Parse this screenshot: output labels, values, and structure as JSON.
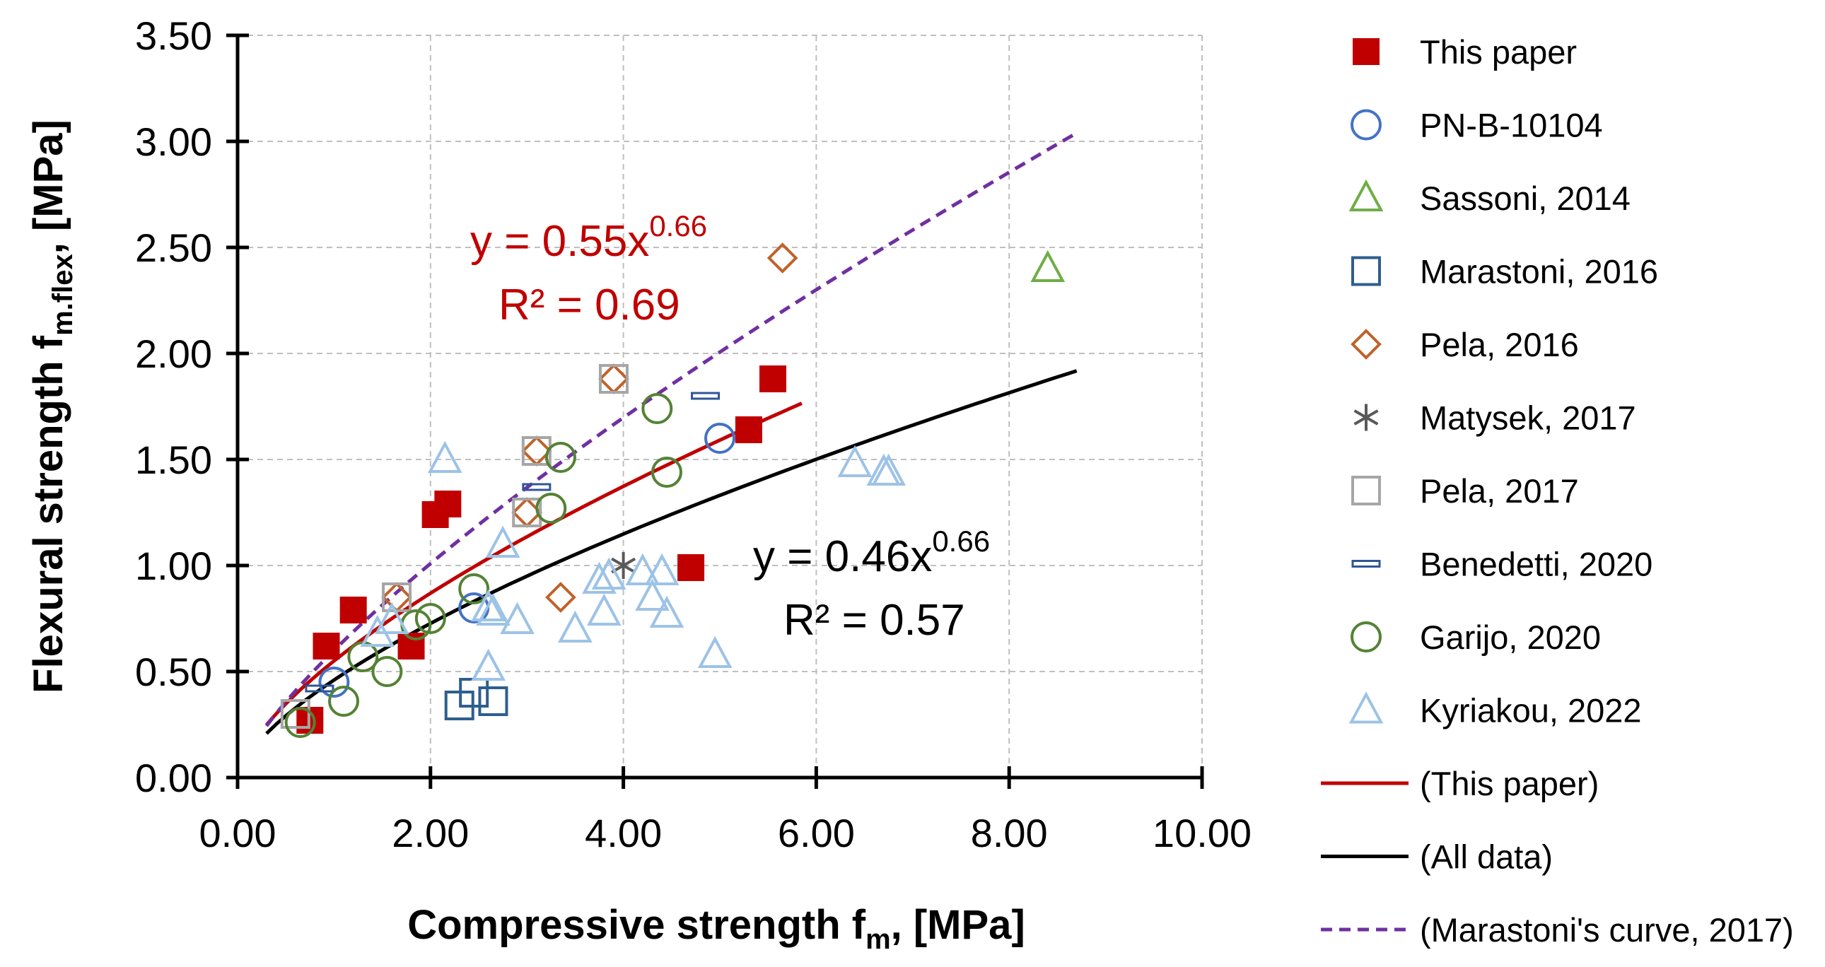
{
  "chart_data": {
    "type": "scatter",
    "xlabel": "Compressive strength f",
    "xlabel_sub": "m",
    "xlabel_unit": ", [MPa]",
    "ylabel": "Flexural strength f",
    "ylabel_sub": "m.flex",
    "ylabel_unit": ", [MPa]",
    "xlim": [
      0,
      10
    ],
    "ylim": [
      0,
      3.5
    ],
    "grid": true,
    "legend_position": "right",
    "x_ticks": [
      0,
      2,
      4,
      6,
      8,
      10
    ],
    "y_ticks": [
      0,
      0.5,
      1.0,
      1.5,
      2.0,
      2.5,
      3.0,
      3.5
    ],
    "x_tick_labels": [
      "0.00",
      "2.00",
      "4.00",
      "6.00",
      "8.00",
      "10.00"
    ],
    "y_tick_labels": [
      "0.00",
      "0.50",
      "1.00",
      "1.50",
      "2.00",
      "2.50",
      "3.00",
      "3.50"
    ],
    "series": [
      {
        "name": "This paper",
        "marker": "square-filled",
        "color": "#C00000",
        "points": [
          [
            0.75,
            0.27
          ],
          [
            0.92,
            0.62
          ],
          [
            1.2,
            0.79
          ],
          [
            1.8,
            0.62
          ],
          [
            2.05,
            1.24
          ],
          [
            2.18,
            1.29
          ],
          [
            4.7,
            0.99
          ],
          [
            5.3,
            1.64
          ],
          [
            5.55,
            1.88
          ]
        ]
      },
      {
        "name": "PN-B-10104",
        "marker": "circle",
        "color": "#4472C4",
        "points": [
          [
            1.0,
            0.45
          ],
          [
            2.45,
            0.8
          ],
          [
            5.0,
            1.6
          ]
        ]
      },
      {
        "name": "Sassoni, 2014",
        "marker": "triangle",
        "color": "#70AD47",
        "points": [
          [
            8.4,
            2.4
          ]
        ]
      },
      {
        "name": "Marastoni, 2016",
        "marker": "square",
        "color": "#2E5E8E",
        "points": [
          [
            2.3,
            0.34
          ],
          [
            2.45,
            0.4
          ],
          [
            2.65,
            0.36
          ]
        ]
      },
      {
        "name": "Pela, 2016",
        "marker": "diamond",
        "color": "#C0622A",
        "points": [
          [
            1.65,
            0.85
          ],
          [
            3.0,
            1.25
          ],
          [
            3.1,
            1.54
          ],
          [
            3.35,
            0.85
          ],
          [
            3.9,
            1.88
          ],
          [
            5.65,
            2.45
          ]
        ]
      },
      {
        "name": "Matysek, 2017",
        "marker": "asterisk",
        "color": "#595959",
        "points": [
          [
            4.0,
            1.0
          ]
        ]
      },
      {
        "name": "Pela, 2017",
        "marker": "square",
        "color": "#A6A6A6",
        "points": [
          [
            0.6,
            0.3
          ],
          [
            1.65,
            0.85
          ],
          [
            3.0,
            1.25
          ],
          [
            3.1,
            1.54
          ],
          [
            3.9,
            1.88
          ]
        ]
      },
      {
        "name": "Benedetti, 2020",
        "marker": "dash",
        "color": "#2F5597",
        "points": [
          [
            0.85,
            0.42
          ],
          [
            3.1,
            1.37
          ],
          [
            4.85,
            1.8
          ]
        ]
      },
      {
        "name": "Garijo, 2020",
        "marker": "circle",
        "color": "#548235",
        "points": [
          [
            0.65,
            0.26
          ],
          [
            1.1,
            0.36
          ],
          [
            1.3,
            0.57
          ],
          [
            1.55,
            0.5
          ],
          [
            1.85,
            0.72
          ],
          [
            2.0,
            0.75
          ],
          [
            2.45,
            0.89
          ],
          [
            3.25,
            1.27
          ],
          [
            3.35,
            1.51
          ],
          [
            4.35,
            1.74
          ],
          [
            4.45,
            1.44
          ]
        ]
      },
      {
        "name": "Kyriakou, 2022",
        "marker": "triangle",
        "color": "#9DC3E6",
        "points": [
          [
            1.45,
            0.68
          ],
          [
            1.6,
            0.74
          ],
          [
            2.15,
            1.5
          ],
          [
            2.6,
            0.8
          ],
          [
            2.6,
            0.52
          ],
          [
            2.65,
            0.78
          ],
          [
            2.75,
            1.1
          ],
          [
            2.9,
            0.74
          ],
          [
            3.5,
            0.7
          ],
          [
            3.75,
            0.93
          ],
          [
            3.8,
            0.78
          ],
          [
            3.85,
            0.95
          ],
          [
            4.2,
            0.97
          ],
          [
            4.3,
            0.85
          ],
          [
            4.4,
            0.97
          ],
          [
            4.45,
            0.77
          ],
          [
            4.95,
            0.58
          ],
          [
            6.4,
            1.48
          ],
          [
            6.7,
            1.44
          ],
          [
            6.75,
            1.44
          ]
        ]
      }
    ],
    "curves": [
      {
        "name": "(This paper)",
        "style": "solid",
        "color": "#C00000",
        "a": 0.55,
        "b": 0.66,
        "x_range": [
          0.3,
          5.85
        ]
      },
      {
        "name": "(All data)",
        "style": "solid",
        "color": "#000000",
        "a": 0.46,
        "b": 0.66,
        "x_range": [
          0.3,
          8.7
        ]
      },
      {
        "name": "(Marastoni's curve, 2017)",
        "style": "dashed",
        "color": "#7030A0",
        "a": 0.6,
        "b": 0.75,
        "x_range": [
          0.3,
          8.7
        ]
      }
    ],
    "annotations": [
      {
        "eq_prefix": "y = 0.55x",
        "eq_exp": "0.66",
        "r2": "R² = 0.69",
        "color": "#C00000"
      },
      {
        "eq_prefix": "y = 0.46x",
        "eq_exp": "0.66",
        "r2": "R² = 0.57",
        "color": "#000000"
      }
    ]
  }
}
